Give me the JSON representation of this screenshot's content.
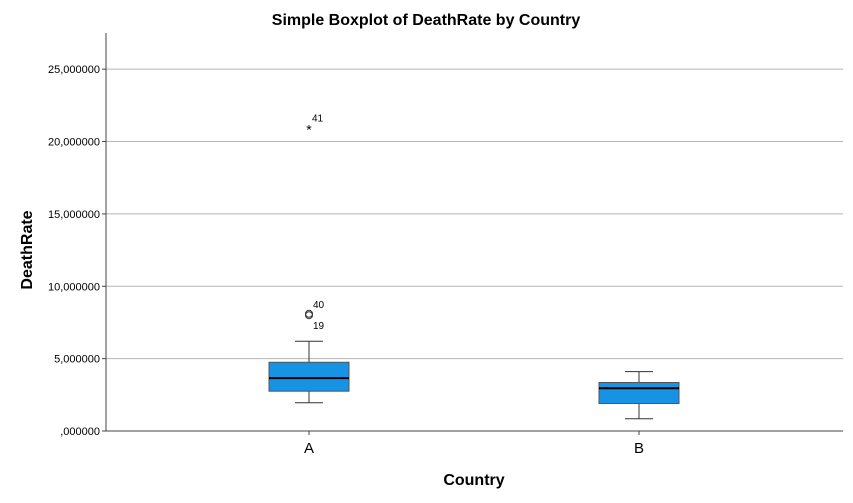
{
  "chart_data": {
    "type": "boxplot",
    "title": "Simple Boxplot of DeathRate by Country",
    "xlabel": "Country",
    "ylabel": "DeathRate",
    "ylim": [
      0,
      27.5
    ],
    "yticks": [
      0,
      5,
      10,
      15,
      20,
      25
    ],
    "ytick_labels": [
      ",000000",
      "5,000000",
      "10,000000",
      "15,000000",
      "20,000000",
      "25,000000"
    ],
    "grid": true,
    "box_color": "#1793e6",
    "categories": [
      "A",
      "B"
    ],
    "boxes": [
      {
        "category": "A",
        "whisker_low": 1.95,
        "q1": 2.75,
        "median": 3.65,
        "q3": 4.75,
        "whisker_high": 6.2,
        "outliers": [
          {
            "value": 8.1,
            "label": "40",
            "marker": "circle"
          },
          {
            "value": 8.0,
            "label": "19",
            "marker": "circle"
          }
        ],
        "extremes": [
          {
            "value": 20.9,
            "label": "41",
            "marker": "star"
          }
        ]
      },
      {
        "category": "B",
        "whisker_low": 0.85,
        "q1": 1.9,
        "median": 2.95,
        "q3": 3.35,
        "whisker_high": 4.1,
        "outliers": [],
        "extremes": []
      }
    ]
  }
}
